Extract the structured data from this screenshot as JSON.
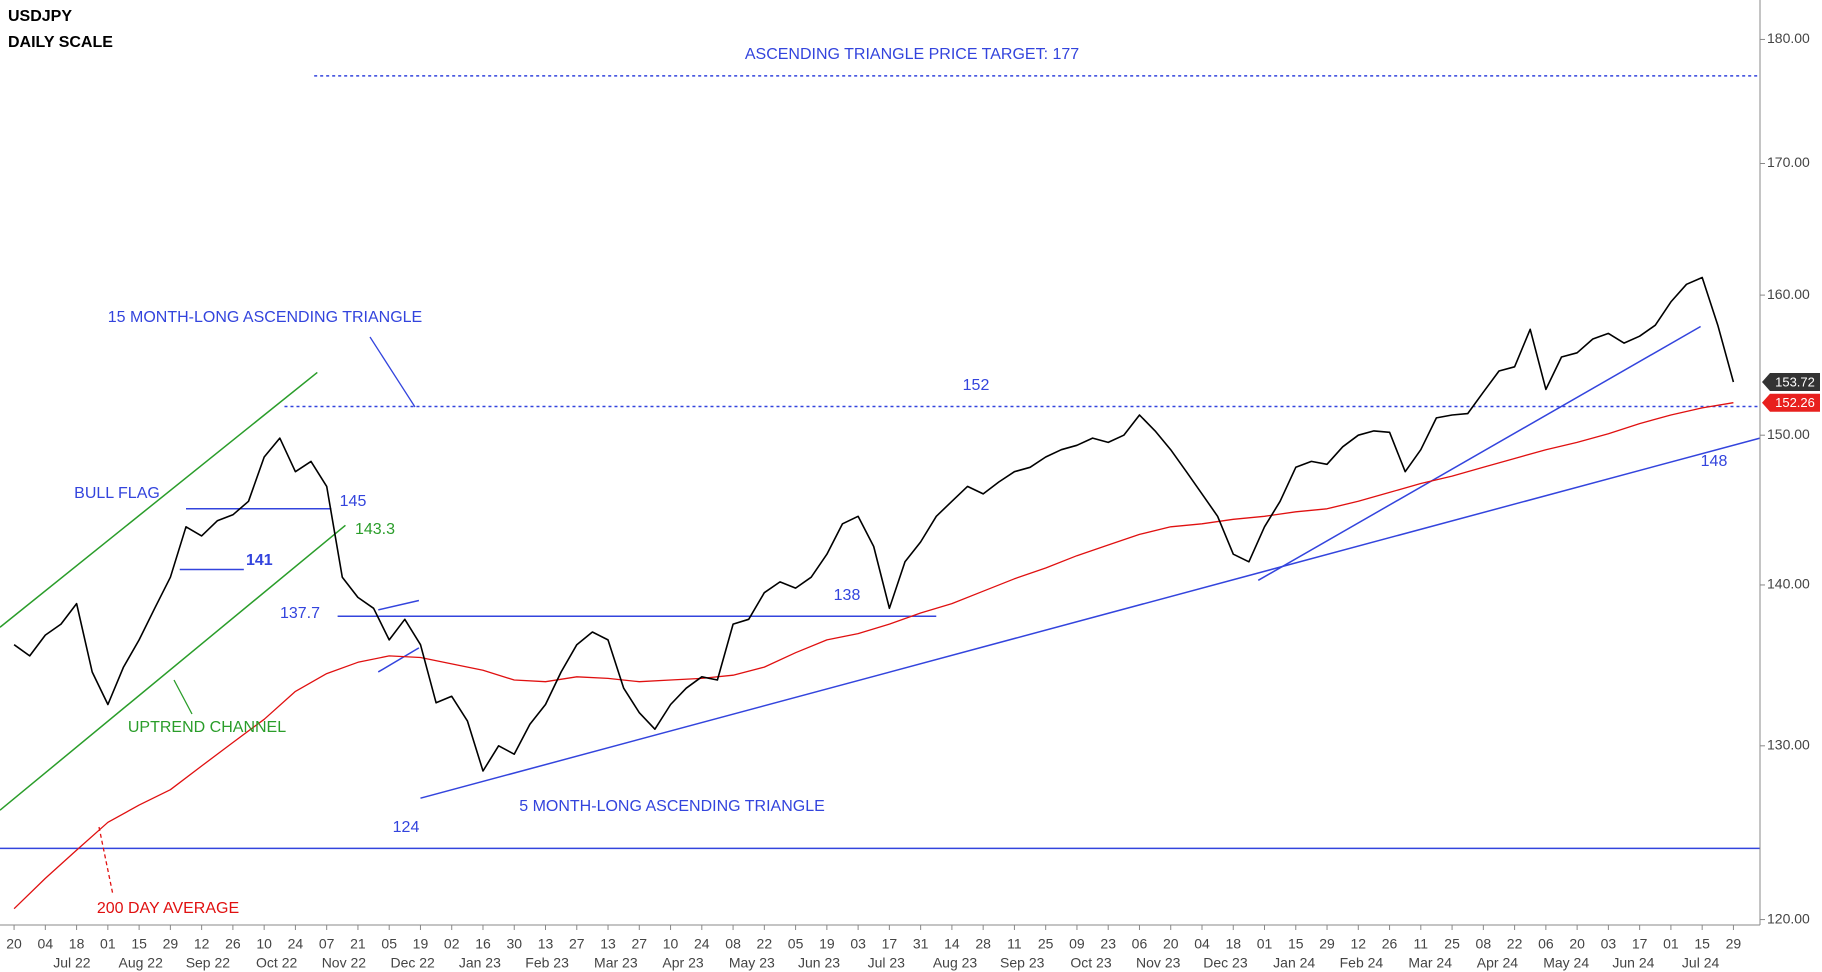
{
  "chart_data": {
    "type": "line",
    "title": "USDJPY",
    "subtitle": "DAILY SCALE",
    "log_scale": true,
    "xlim": [
      -0.9,
      111.7
    ],
    "ylim": [
      119.7,
      183.3
    ],
    "yticks": [
      {
        "value": 120,
        "label": "120.00"
      },
      {
        "value": 130,
        "label": "130.00"
      },
      {
        "value": 140,
        "label": "140.00"
      },
      {
        "value": 150,
        "label": "150.00"
      },
      {
        "value": 160,
        "label": "160.00"
      },
      {
        "value": 170,
        "label": "170.00"
      },
      {
        "value": 180,
        "label": "180.00"
      }
    ],
    "xticks": [
      {
        "value": 0,
        "label": "20"
      },
      {
        "value": 2,
        "label": "04"
      },
      {
        "value": 4,
        "label": "18"
      },
      {
        "value": 6,
        "label": "01"
      },
      {
        "value": 8,
        "label": "15"
      },
      {
        "value": 10,
        "label": "29"
      },
      {
        "value": 12,
        "label": "12"
      },
      {
        "value": 14,
        "label": "26"
      },
      {
        "value": 16,
        "label": "10"
      },
      {
        "value": 18,
        "label": "24"
      },
      {
        "value": 20,
        "label": "07"
      },
      {
        "value": 22,
        "label": "21"
      },
      {
        "value": 24,
        "label": "05"
      },
      {
        "value": 26,
        "label": "19"
      },
      {
        "value": 28,
        "label": "02"
      },
      {
        "value": 30,
        "label": "16"
      },
      {
        "value": 32,
        "label": "30"
      },
      {
        "value": 34,
        "label": "13"
      },
      {
        "value": 36,
        "label": "27"
      },
      {
        "value": 38,
        "label": "13"
      },
      {
        "value": 40,
        "label": "27"
      },
      {
        "value": 42,
        "label": "10"
      },
      {
        "value": 44,
        "label": "24"
      },
      {
        "value": 46,
        "label": "08"
      },
      {
        "value": 48,
        "label": "22"
      },
      {
        "value": 50,
        "label": "05"
      },
      {
        "value": 52,
        "label": "19"
      },
      {
        "value": 54,
        "label": "03"
      },
      {
        "value": 56,
        "label": "17"
      },
      {
        "value": 58,
        "label": "31"
      },
      {
        "value": 60,
        "label": "14"
      },
      {
        "value": 62,
        "label": "28"
      },
      {
        "value": 64,
        "label": "11"
      },
      {
        "value": 66,
        "label": "25"
      },
      {
        "value": 68,
        "label": "09"
      },
      {
        "value": 70,
        "label": "23"
      },
      {
        "value": 72,
        "label": "06"
      },
      {
        "value": 74,
        "label": "20"
      },
      {
        "value": 76,
        "label": "04"
      },
      {
        "value": 78,
        "label": "18"
      },
      {
        "value": 80,
        "label": "01"
      },
      {
        "value": 82,
        "label": "15"
      },
      {
        "value": 84,
        "label": "29"
      },
      {
        "value": 86,
        "label": "12"
      },
      {
        "value": 88,
        "label": "26"
      },
      {
        "value": 90,
        "label": "11"
      },
      {
        "value": 92,
        "label": "25"
      },
      {
        "value": 94,
        "label": "08"
      },
      {
        "value": 96,
        "label": "22"
      },
      {
        "value": 98,
        "label": "06"
      },
      {
        "value": 100,
        "label": "20"
      },
      {
        "value": 102,
        "label": "03"
      },
      {
        "value": 104,
        "label": "17"
      },
      {
        "value": 106,
        "label": "01"
      },
      {
        "value": 108,
        "label": "15"
      },
      {
        "value": 110,
        "label": "29"
      }
    ],
    "month_ticks": [
      {
        "value": 3.7,
        "label": "Jul 22"
      },
      {
        "value": 8.1,
        "label": "Aug 22"
      },
      {
        "value": 12.4,
        "label": "Sep 22"
      },
      {
        "value": 16.8,
        "label": "Oct 22"
      },
      {
        "value": 21.1,
        "label": "Nov 22"
      },
      {
        "value": 25.5,
        "label": "Dec 22"
      },
      {
        "value": 29.8,
        "label": "Jan 23"
      },
      {
        "value": 34.1,
        "label": "Feb 23"
      },
      {
        "value": 38.5,
        "label": "Mar 23"
      },
      {
        "value": 42.8,
        "label": "Apr 23"
      },
      {
        "value": 47.2,
        "label": "May 23"
      },
      {
        "value": 51.5,
        "label": "Jun 23"
      },
      {
        "value": 55.8,
        "label": "Jul 23"
      },
      {
        "value": 60.2,
        "label": "Aug 23"
      },
      {
        "value": 64.5,
        "label": "Sep 23"
      },
      {
        "value": 68.9,
        "label": "Oct 23"
      },
      {
        "value": 73.2,
        "label": "Nov 23"
      },
      {
        "value": 77.5,
        "label": "Dec 23"
      },
      {
        "value": 81.9,
        "label": "Jan 24"
      },
      {
        "value": 86.2,
        "label": "Feb 24"
      },
      {
        "value": 90.6,
        "label": "Mar 24"
      },
      {
        "value": 94.9,
        "label": "Apr 24"
      },
      {
        "value": 99.3,
        "label": "May 24"
      },
      {
        "value": 103.6,
        "label": "Jun 24"
      },
      {
        "value": 107.9,
        "label": "Jul 24"
      }
    ],
    "series": [
      {
        "color": "#000000",
        "last_value_label": "153.72",
        "x": [
          0,
          1,
          2,
          3,
          4,
          5,
          6,
          7,
          8,
          9,
          10,
          11,
          12,
          13,
          14,
          15,
          16,
          17,
          18,
          19,
          20,
          21,
          22,
          23,
          24,
          25,
          26,
          27,
          28,
          29,
          30,
          31,
          32,
          33,
          34,
          35,
          36,
          37,
          38,
          39,
          40,
          41,
          42,
          43,
          44,
          45,
          46,
          47,
          48,
          49,
          50,
          51,
          52,
          53,
          54,
          55,
          56,
          57,
          58,
          59,
          60,
          61,
          62,
          63,
          64,
          65,
          66,
          67,
          68,
          69,
          70,
          71,
          72,
          73,
          74,
          75,
          76,
          77,
          78,
          79,
          80,
          81,
          82,
          83,
          84,
          85,
          86,
          87,
          88,
          89,
          90,
          91,
          92,
          93,
          94,
          95,
          96,
          97,
          98,
          99,
          100,
          101,
          102,
          103,
          104,
          105,
          106,
          107,
          108,
          109,
          110
        ],
        "values": [
          136.2,
          135.5,
          136.8,
          137.5,
          138.8,
          134.5,
          132.5,
          134.8,
          136.5,
          138.5,
          140.5,
          143.8,
          143.2,
          144.2,
          144.6,
          145.5,
          148.5,
          149.8,
          147.5,
          148.2,
          146.5,
          140.5,
          139.2,
          138.5,
          136.5,
          137.8,
          136.2,
          132.6,
          133.0,
          131.5,
          128.5,
          130.0,
          129.5,
          131.3,
          132.5,
          134.5,
          136.2,
          137.0,
          136.5,
          133.5,
          132.0,
          131.0,
          132.5,
          133.5,
          134.2,
          134.0,
          137.5,
          137.8,
          139.5,
          140.2,
          139.8,
          140.5,
          142.0,
          144.0,
          144.5,
          142.5,
          138.5,
          141.5,
          142.8,
          144.5,
          145.5,
          146.5,
          146.0,
          146.8,
          147.5,
          147.8,
          148.5,
          149.0,
          149.3,
          149.8,
          149.5,
          150.0,
          151.4,
          150.3,
          149.0,
          147.5,
          146.0,
          144.5,
          142.0,
          141.5,
          143.8,
          145.5,
          147.8,
          148.2,
          148.0,
          149.2,
          150.0,
          150.3,
          150.2,
          147.5,
          149.0,
          151.2,
          151.4,
          151.5,
          153.0,
          154.5,
          154.8,
          157.5,
          153.2,
          155.5,
          155.8,
          156.8,
          157.2,
          156.5,
          157.0,
          157.8,
          159.5,
          160.8,
          161.3,
          157.8,
          153.72
        ]
      },
      {
        "color": "#e01010",
        "last_value_label": "152.26",
        "x": [
          0,
          2,
          4,
          6,
          8,
          10,
          12,
          14,
          16,
          18,
          20,
          22,
          24,
          26,
          28,
          30,
          32,
          34,
          36,
          38,
          40,
          42,
          44,
          46,
          48,
          50,
          52,
          54,
          56,
          58,
          60,
          62,
          64,
          66,
          68,
          70,
          72,
          74,
          76,
          78,
          80,
          82,
          84,
          86,
          88,
          90,
          92,
          94,
          96,
          98,
          100,
          102,
          104,
          106,
          108,
          110
        ],
        "values": [
          120.6,
          122.3,
          123.9,
          125.5,
          126.5,
          127.4,
          128.8,
          130.2,
          131.6,
          133.3,
          134.4,
          135.1,
          135.5,
          135.4,
          135.0,
          134.6,
          134.0,
          133.9,
          134.2,
          134.1,
          133.9,
          134.0,
          134.1,
          134.3,
          134.8,
          135.7,
          136.5,
          136.9,
          137.5,
          138.2,
          138.8,
          139.6,
          140.4,
          141.1,
          141.9,
          142.6,
          143.3,
          143.8,
          144.0,
          144.3,
          144.5,
          144.8,
          145.0,
          145.5,
          146.1,
          146.7,
          147.2,
          147.8,
          148.4,
          149.0,
          149.5,
          150.1,
          150.8,
          151.4,
          151.9,
          152.26
        ]
      }
    ],
    "lines": [
      {
        "color": "#3344dd",
        "style": "dotted",
        "points": [
          [
            19.2,
            177
          ],
          [
            111.7,
            177
          ]
        ]
      },
      {
        "color": "#3344dd",
        "style": "dotted",
        "points": [
          [
            17.3,
            152
          ],
          [
            111.7,
            152
          ]
        ]
      },
      {
        "color": "#3344dd",
        "points": [
          [
            -0.9,
            124
          ],
          [
            111.7,
            124
          ]
        ]
      },
      {
        "color": "#3344dd",
        "points": [
          [
            26,
            126.9
          ],
          [
            111.7,
            149.8
          ]
        ]
      },
      {
        "color": "#3344dd",
        "points": [
          [
            79.6,
            140.3
          ],
          [
            107.9,
            157.7
          ]
        ]
      },
      {
        "color": "#3344dd",
        "points": [
          [
            20.7,
            138
          ],
          [
            59,
            138
          ]
        ]
      },
      {
        "color": "#3344dd",
        "points": [
          [
            11,
            145
          ],
          [
            20.3,
            145
          ]
        ]
      },
      {
        "color": "#3344dd",
        "points": [
          [
            10.6,
            141
          ],
          [
            14.7,
            141
          ]
        ]
      },
      {
        "color": "#2a9d2a",
        "points": [
          [
            -0.9,
            137.3
          ],
          [
            19.4,
            154.4
          ]
        ]
      },
      {
        "color": "#2a9d2a",
        "points": [
          [
            -0.9,
            126.2
          ],
          [
            21.2,
            143.9
          ]
        ]
      },
      {
        "color": "#3344dd",
        "points": [
          [
            23.3,
            134.5
          ],
          [
            25.9,
            136.0
          ]
        ]
      },
      {
        "color": "#3344dd",
        "points": [
          [
            23.3,
            138.4
          ],
          [
            25.9,
            139.0
          ]
        ]
      }
    ],
    "annotations": [
      {
        "text": "ASCENDING TRIANGLE PRICE TARGET: 177",
        "color": "#3344dd"
      },
      {
        "text": "15 MONTH-LONG ASCENDING TRIANGLE",
        "color": "#3344dd"
      },
      {
        "text": "152",
        "color": "#3344dd"
      },
      {
        "text": "BULL FLAG",
        "color": "#3344dd"
      },
      {
        "text": "145",
        "color": "#3344dd"
      },
      {
        "text": "143.3",
        "color": "#2a9d2a"
      },
      {
        "text": "141",
        "color": "#3344dd"
      },
      {
        "text": "137.7",
        "color": "#3344dd"
      },
      {
        "text": "138",
        "color": "#3344dd"
      },
      {
        "text": "UPTREND CHANNEL",
        "color": "#2a9d2a"
      },
      {
        "text": "5 MONTH-LONG ASCENDING TRIANGLE",
        "color": "#3344dd"
      },
      {
        "text": "124",
        "color": "#3344dd"
      },
      {
        "text": "200 DAY AVERAGE",
        "color": "#e01010"
      },
      {
        "text": "148",
        "color": "#3344dd"
      }
    ]
  }
}
